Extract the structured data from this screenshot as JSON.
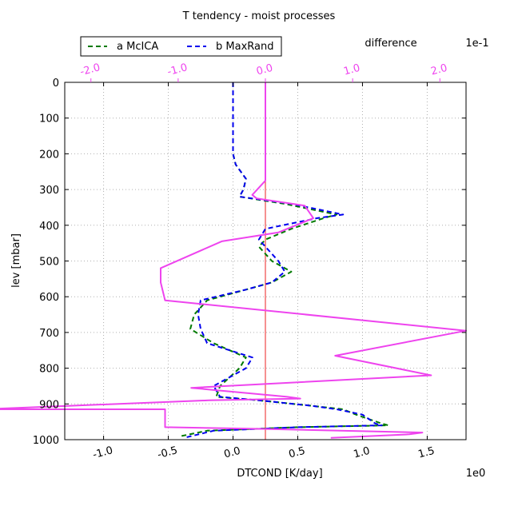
{
  "chart_data": {
    "type": "line",
    "title": "T tendency - moist processes",
    "xlabel": "DTCOND [K/day]",
    "ylabel": "lev [mbar]",
    "x_offset_label": "1e0",
    "xlim": [
      -1.3,
      1.8
    ],
    "ylim": [
      1000,
      0
    ],
    "grid": true,
    "x_ticks": [
      -1.0,
      -0.5,
      0.0,
      0.5,
      1.0,
      1.5
    ],
    "x_tick_labels": [
      "-1.0",
      "-0.5",
      "0.0",
      "0.5",
      "1.0",
      "1.5"
    ],
    "y_ticks": [
      0,
      100,
      200,
      300,
      400,
      500,
      600,
      700,
      800,
      900,
      1000
    ],
    "y_tick_labels": [
      "0",
      "100",
      "200",
      "300",
      "400",
      "500",
      "600",
      "700",
      "800",
      "900",
      "1000"
    ],
    "twin_axis": {
      "label": "difference",
      "offset_label": "1e-1",
      "xlim": [
        -2.3,
        2.3
      ],
      "x_ticks": [
        -2.0,
        -1.0,
        0.0,
        1.0,
        2.0
      ],
      "x_tick_labels": [
        "-2.0",
        "-1.0",
        "0.0",
        "1.0",
        "2.0"
      ],
      "color": "#ee44ee"
    },
    "legend": {
      "placement": "top-left"
    },
    "series": [
      {
        "name": "a McICA",
        "color": "#007a00",
        "dash": "dashed",
        "axis": "primary",
        "x": [
          0.0,
          0.0,
          0.0,
          0.0,
          0.02,
          0.1,
          0.08,
          0.05,
          0.4,
          0.8,
          0.7,
          0.45,
          0.25,
          0.2,
          0.3,
          0.45,
          0.3,
          0.1,
          -0.2,
          -0.3,
          -0.33,
          -0.15,
          0.1,
          0.05,
          -0.1,
          -0.13,
          0.2,
          0.6,
          0.85,
          0.95,
          1.15,
          1.2,
          0.5,
          -0.2,
          -0.4
        ],
        "y": [
          0,
          100,
          150,
          200,
          230,
          270,
          300,
          320,
          340,
          370,
          380,
          410,
          440,
          460,
          500,
          530,
          560,
          580,
          610,
          650,
          690,
          730,
          770,
          800,
          850,
          880,
          890,
          905,
          915,
          930,
          955,
          960,
          965,
          975,
          990
        ]
      },
      {
        "name": "b MaxRand",
        "color": "#0000ee",
        "dash": "dashed",
        "axis": "primary",
        "x": [
          0.0,
          0.0,
          0.0,
          0.0,
          0.02,
          0.1,
          0.08,
          0.05,
          0.45,
          0.85,
          0.65,
          0.25,
          0.2,
          0.25,
          0.35,
          0.4,
          0.3,
          0.1,
          -0.25,
          -0.27,
          -0.25,
          -0.2,
          0.15,
          0.1,
          -0.15,
          -0.1,
          0.2,
          0.6,
          0.8,
          1.0,
          1.1,
          1.15,
          0.5,
          -0.15,
          -0.38
        ],
        "y": [
          0,
          100,
          150,
          200,
          230,
          270,
          300,
          320,
          340,
          370,
          380,
          410,
          440,
          460,
          500,
          530,
          560,
          580,
          610,
          650,
          690,
          730,
          770,
          800,
          850,
          880,
          890,
          905,
          915,
          930,
          955,
          960,
          965,
          975,
          995
        ]
      },
      {
        "name": "difference",
        "color": "#ee44ee",
        "dash": "solid",
        "axis": "twin",
        "x": [
          0.0,
          0.0,
          0.0,
          0.0,
          -0.15,
          -0.1,
          0.45,
          0.55,
          0.15,
          -0.5,
          -1.2,
          -1.2,
          -1.15,
          2.3,
          0.8,
          1.9,
          -0.85,
          0.25,
          0.4,
          -0.65,
          -3.25,
          -1.15,
          -1.15,
          0.0,
          1.8,
          1.65,
          0.75
        ],
        "y": [
          0,
          100,
          200,
          275,
          315,
          325,
          345,
          380,
          420,
          445,
          520,
          560,
          610,
          695,
          765,
          820,
          855,
          880,
          885,
          890,
          915,
          915,
          965,
          970,
          980,
          985,
          995
        ]
      }
    ],
    "vline": {
      "x": 0.0,
      "axis": "twin",
      "color": "#ee2222"
    }
  }
}
